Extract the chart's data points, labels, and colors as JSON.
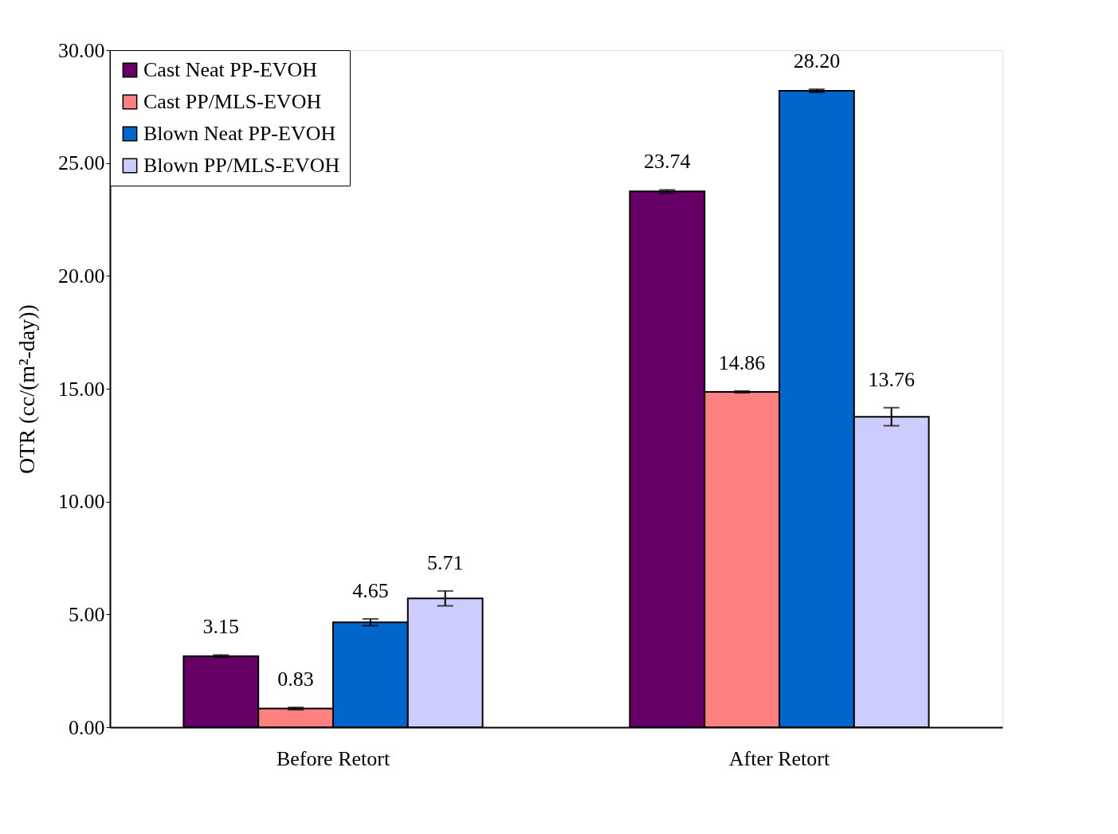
{
  "chart_data": {
    "type": "bar",
    "ylabel": "OTR (cc/(m²-day))",
    "categories": [
      "Before Retort",
      "After Retort"
    ],
    "series": [
      {
        "name": "Cast Neat PP-EVOH",
        "color": "#660066",
        "values": [
          3.15,
          23.74
        ],
        "errors": [
          0.05,
          0.07
        ],
        "value_labels": [
          "3.15",
          "23.74"
        ]
      },
      {
        "name": "Cast PP/MLS-EVOH",
        "color": "#ff8080",
        "values": [
          0.83,
          14.86
        ],
        "errors": [
          0.05,
          0.04
        ],
        "value_labels": [
          "0.83",
          "14.86"
        ]
      },
      {
        "name": "Blown Neat PP-EVOH",
        "color": "#0066cc",
        "values": [
          4.65,
          28.2
        ],
        "errors": [
          0.15,
          0.07
        ],
        "value_labels": [
          "4.65",
          "28.20"
        ]
      },
      {
        "name": "Blown PP/MLS-EVOH",
        "color": "#ccccff",
        "values": [
          5.71,
          13.76
        ],
        "errors": [
          0.33,
          0.4
        ],
        "value_labels": [
          "5.71",
          "13.76"
        ]
      }
    ],
    "ylim": [
      0,
      30
    ],
    "yticks": [
      {
        "value": 0,
        "label": "0.00"
      },
      {
        "value": 5,
        "label": "5.00"
      },
      {
        "value": 10,
        "label": "10.00"
      },
      {
        "value": 15,
        "label": "15.00"
      },
      {
        "value": 20,
        "label": "20.00"
      },
      {
        "value": 25,
        "label": "25.00"
      },
      {
        "value": 30,
        "label": "30.00"
      }
    ],
    "grid": false,
    "legend": "top left"
  }
}
